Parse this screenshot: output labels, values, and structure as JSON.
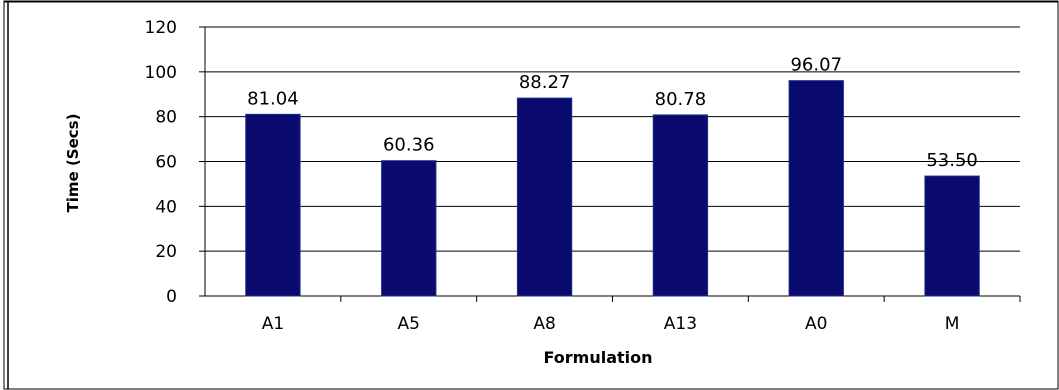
{
  "chart_data": {
    "type": "bar",
    "title": "",
    "xlabel": "Formulation",
    "ylabel": "Time (Secs)",
    "categories": [
      "A1",
      "A5",
      "A8",
      "A13",
      "A0",
      "M"
    ],
    "values": [
      81.04,
      60.36,
      88.27,
      80.78,
      96.07,
      53.5
    ],
    "value_labels": [
      "81.04",
      "60.36",
      "88.27",
      "80.78",
      "96.07",
      "53.50"
    ],
    "ylim": [
      0,
      120
    ],
    "yticks": [
      0,
      20,
      40,
      60,
      80,
      100,
      120
    ],
    "grid": true,
    "legend": "none",
    "colors": {
      "bar": "#0a0a6e",
      "bar_edge": "#1d2d8a",
      "grid": "#000000"
    }
  }
}
